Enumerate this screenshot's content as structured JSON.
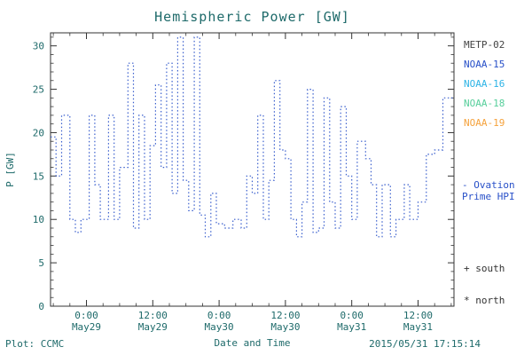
{
  "colors": {
    "text": "#1e6a6a",
    "axis": "#333333",
    "data_line": "#3a5fcd"
  },
  "chart_data": {
    "type": "line",
    "style": "steps-dotted",
    "title": "Hemispheric Power [GW]",
    "xlabel": "Date and Time",
    "ylabel": "P [GW]",
    "ylim": [
      0,
      31.5
    ],
    "xlim_hours_from_may29_0000": [
      -6.5,
      66.5
    ],
    "y_ticks": [
      0,
      5,
      10,
      15,
      20,
      25,
      30
    ],
    "x_ticks": [
      {
        "t": 0,
        "time": "0:00",
        "date": "May29"
      },
      {
        "t": 12,
        "time": "12:00",
        "date": "May29"
      },
      {
        "t": 24,
        "time": "0:00",
        "date": "May30"
      },
      {
        "t": 36,
        "time": "12:00",
        "date": "May30"
      },
      {
        "t": 48,
        "time": "0:00",
        "date": "May31"
      },
      {
        "t": 60,
        "time": "12:00",
        "date": "May31"
      }
    ],
    "x_minor_tick_step_hours": 3,
    "y_minor_tick_step": 1,
    "series_name": "Ovation Prime HPI",
    "steps_t_hours_value_gw": [
      [
        -6.5,
        19.5
      ],
      [
        -5.5,
        15.0
      ],
      [
        -4.5,
        22.0
      ],
      [
        -3.0,
        10.0
      ],
      [
        -2.0,
        8.5
      ],
      [
        -1.0,
        10.0
      ],
      [
        0.5,
        22.0
      ],
      [
        1.5,
        14.0
      ],
      [
        2.5,
        10.0
      ],
      [
        4.0,
        22.0
      ],
      [
        5.0,
        10.0
      ],
      [
        6.0,
        16.0
      ],
      [
        7.5,
        28.0
      ],
      [
        8.5,
        9.0
      ],
      [
        9.5,
        22.0
      ],
      [
        10.5,
        10.0
      ],
      [
        11.5,
        18.5
      ],
      [
        12.5,
        25.5
      ],
      [
        13.5,
        16.0
      ],
      [
        14.5,
        28.0
      ],
      [
        15.5,
        13.0
      ],
      [
        16.5,
        31.0
      ],
      [
        17.5,
        14.5
      ],
      [
        18.5,
        11.0
      ],
      [
        19.5,
        31.0
      ],
      [
        20.5,
        10.5
      ],
      [
        21.5,
        8.0
      ],
      [
        22.5,
        13.0
      ],
      [
        23.5,
        9.5
      ],
      [
        25.0,
        9.0
      ],
      [
        26.5,
        10.0
      ],
      [
        28.0,
        9.0
      ],
      [
        29.0,
        15.0
      ],
      [
        30.0,
        13.0
      ],
      [
        31.0,
        22.0
      ],
      [
        32.0,
        10.0
      ],
      [
        33.0,
        14.5
      ],
      [
        34.0,
        26.0
      ],
      [
        35.0,
        18.0
      ],
      [
        36.0,
        17.0
      ],
      [
        37.0,
        10.0
      ],
      [
        38.0,
        8.0
      ],
      [
        39.0,
        12.0
      ],
      [
        40.0,
        25.0
      ],
      [
        41.0,
        8.5
      ],
      [
        42.0,
        9.0
      ],
      [
        43.0,
        24.0
      ],
      [
        44.0,
        12.0
      ],
      [
        45.0,
        9.0
      ],
      [
        46.0,
        23.0
      ],
      [
        47.0,
        15.0
      ],
      [
        48.0,
        10.0
      ],
      [
        49.0,
        19.0
      ],
      [
        50.5,
        17.0
      ],
      [
        51.5,
        14.0
      ],
      [
        52.5,
        8.0
      ],
      [
        53.5,
        14.0
      ],
      [
        55.0,
        8.0
      ],
      [
        56.0,
        10.0
      ],
      [
        57.5,
        14.0
      ],
      [
        58.5,
        10.0
      ],
      [
        60.0,
        12.0
      ],
      [
        61.5,
        17.5
      ],
      [
        63.0,
        18.0
      ],
      [
        64.5,
        24.0
      ]
    ],
    "steps_end_t_hours": 66.5
  },
  "legend": {
    "satellites": [
      {
        "label": "METP-02",
        "color": "#444444"
      },
      {
        "label": "NOAA-15",
        "color": "#2850c8"
      },
      {
        "label": "NOAA-16",
        "color": "#2db4e6"
      },
      {
        "label": "NOAA-18",
        "color": "#57cf9b"
      },
      {
        "label": "NOAA-19",
        "color": "#f5a23c"
      }
    ],
    "ovation_line1": "- Ovation",
    "ovation_line2": "Prime HPI",
    "ovation_color": "#2850c8",
    "south_label": "+ south",
    "north_label": "* north"
  },
  "footer": {
    "left": "Plot: CCMC",
    "right": "2015/05/31 17:15:14"
  }
}
